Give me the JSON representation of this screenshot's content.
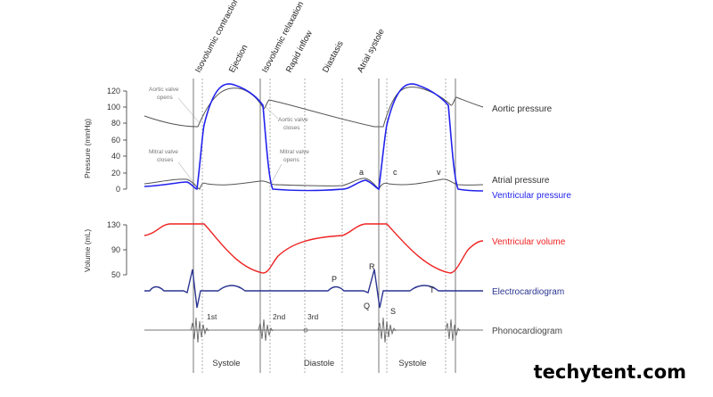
{
  "phases": [
    "Isovolumic contraction",
    "Ejection",
    "Isovolumic relaxation",
    "Rapid inflow",
    "Diastasis",
    "Atrial systole"
  ],
  "pressure_axis": {
    "title": "Pressure (mmHg)",
    "ticks": [
      "120",
      "100",
      "80",
      "60",
      "40",
      "20",
      "0"
    ]
  },
  "volume_axis": {
    "title": "Volume (mL)",
    "ticks": [
      "130",
      "90",
      "50"
    ]
  },
  "annotations": {
    "aortic_opens": [
      "Aortic valve",
      "opens"
    ],
    "aortic_closes": [
      "Aortic valve",
      "closes"
    ],
    "mitral_closes": [
      "Mitral valve",
      "closes"
    ],
    "mitral_opens": [
      "Mitral valve",
      "opens"
    ]
  },
  "atrial_waves": {
    "a": "a",
    "c": "c",
    "v": "v"
  },
  "ecg_waves": {
    "p": "P",
    "q": "Q",
    "r": "R",
    "s": "S",
    "t": "T"
  },
  "heart_sounds": {
    "s1": "1st",
    "s2": "2nd",
    "s3": "3rd"
  },
  "curve_labels": {
    "aortic": "Aortic pressure",
    "atrial": "Atrial pressure",
    "ventricular_pressure": "Ventricular pressure",
    "ventricular_volume": "Ventricular volume",
    "ecg": "Electrocardiogram",
    "phono": "Phonocardiogram"
  },
  "periods": [
    "Systole",
    "Diastole",
    "Systole"
  ],
  "colors": {
    "aortic": "#555555",
    "atrial": "#555555",
    "ventricular_pressure": "#2222ee",
    "ventricular_volume": "#ee2222",
    "ecg": "#2b3590",
    "phono": "#666666"
  },
  "watermark": "techytent.com"
}
